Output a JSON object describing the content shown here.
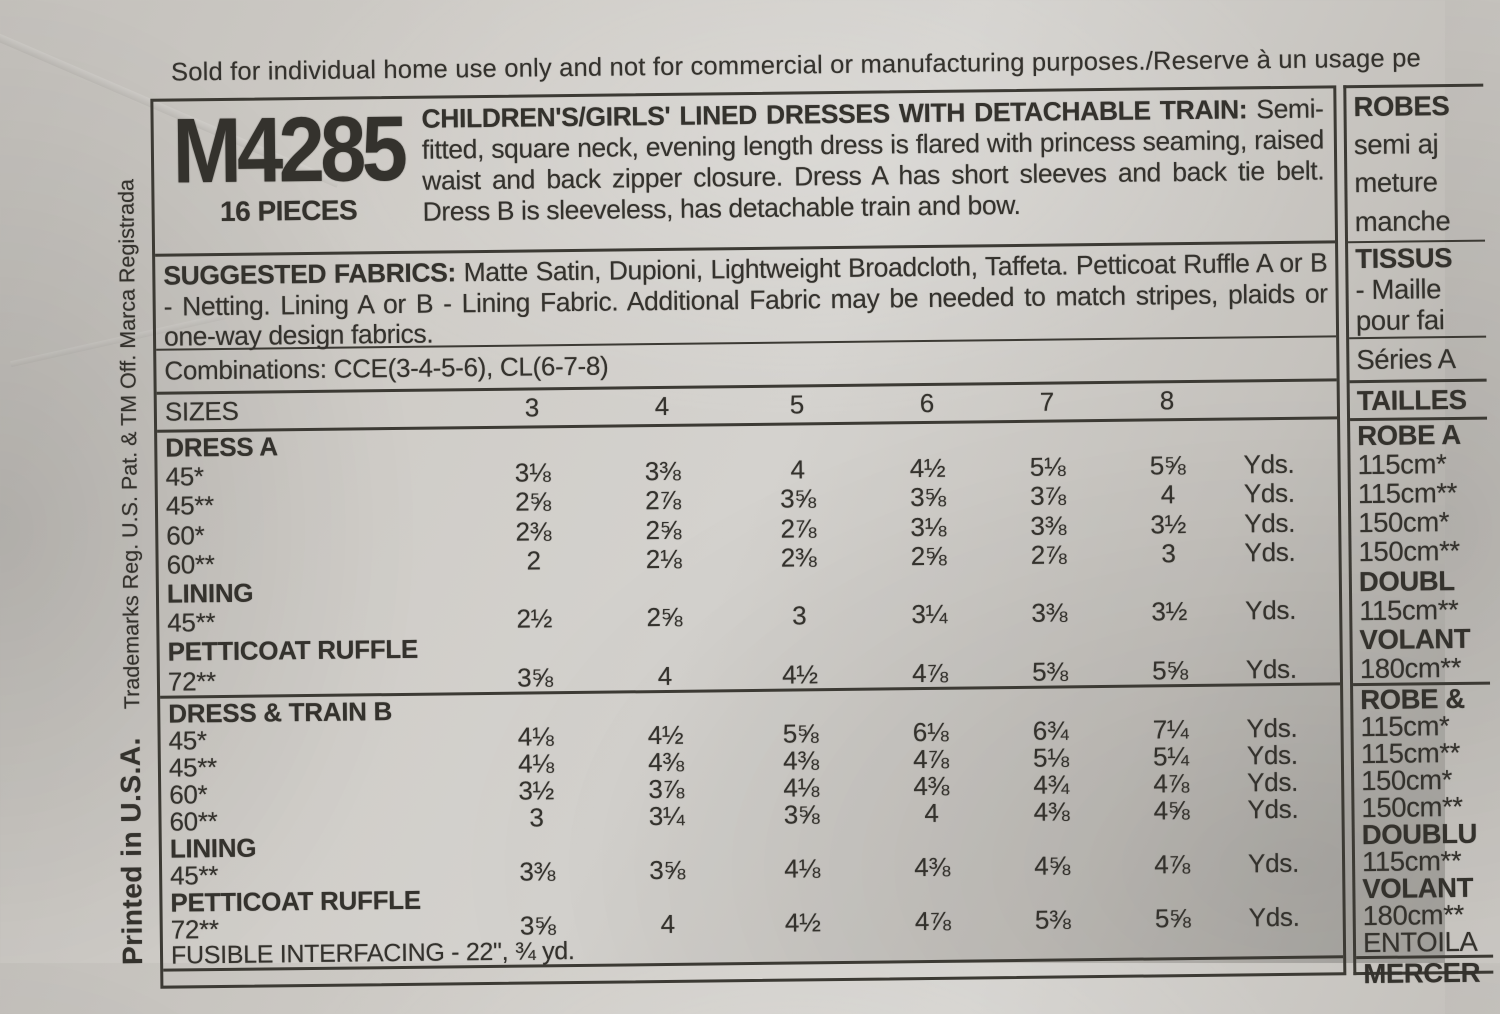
{
  "disclaimer": "Sold for individual home use only and not for commercial or manufacturing purposes./Reserve à un usage pe",
  "side_margin": {
    "printed_in": "Printed in U.S.A.",
    "trademarks": "Trademarks Reg. U.S. Pat. & TM Off. Marca Registrada"
  },
  "header": {
    "pattern_number": "M4285",
    "pieces": "16 PIECES",
    "title": "CHILDREN'S/GIRLS' LINED DRESSES WITH DETACHABLE TRAIN:",
    "description": " Semi-fitted, square neck, evening length dress is flared with princess seaming, raised waist and back zipper closure. Dress A has short sleeves and back tie belt. Dress B is sleeveless, has detachable train and bow."
  },
  "fabrics": {
    "label": "SUGGESTED FABRICS:",
    "text": " Matte Satin, Dupioni, Lightweight Broadcloth, Taffeta. Petticoat Ruffle A or B - Netting. Lining A or B - Lining Fabric. Additional Fabric may be needed to match stripes, plaids or one-way design fabrics."
  },
  "combinations": "Combinations: CCE(3-4-5-6), CL(6-7-8)",
  "yardage_table": {
    "sizes_label": "SIZES",
    "sizes": [
      "3",
      "4",
      "5",
      "6",
      "7",
      "8"
    ],
    "unit": "Yds.",
    "sections": [
      {
        "label": "DRESS A",
        "rows": [
          {
            "width": "45*",
            "values": [
              "3⅛",
              "3⅜",
              "4",
              "4½",
              "5⅛",
              "5⅝"
            ]
          },
          {
            "width": "45**",
            "values": [
              "2⅝",
              "2⅞",
              "3⅝",
              "3⅝",
              "3⅞",
              "4"
            ]
          },
          {
            "width": "60*",
            "values": [
              "2⅜",
              "2⅝",
              "2⅞",
              "3⅛",
              "3⅜",
              "3½"
            ]
          },
          {
            "width": "60**",
            "values": [
              "2",
              "2⅛",
              "2⅜",
              "2⅝",
              "2⅞",
              "3"
            ]
          }
        ]
      },
      {
        "label": "LINING",
        "rows": [
          {
            "width": "45**",
            "values": [
              "2½",
              "2⅝",
              "3",
              "3¼",
              "3⅜",
              "3½"
            ]
          }
        ]
      },
      {
        "label": "PETTICOAT RUFFLE",
        "rows": [
          {
            "width": "72**",
            "values": [
              "3⅝",
              "4",
              "4½",
              "4⅞",
              "5⅜",
              "5⅝"
            ]
          }
        ]
      },
      {
        "label": "DRESS & TRAIN B",
        "rows": [
          {
            "width": "45*",
            "values": [
              "4⅛",
              "4½",
              "5⅝",
              "6⅛",
              "6¾",
              "7¼"
            ]
          },
          {
            "width": "45**",
            "values": [
              "4⅛",
              "4⅜",
              "4⅜",
              "4⅞",
              "5⅛",
              "5¼"
            ]
          },
          {
            "width": "60*",
            "values": [
              "3½",
              "3⅞",
              "4⅛",
              "4⅜",
              "4¾",
              "4⅞"
            ]
          },
          {
            "width": "60**",
            "values": [
              "3",
              "3¼",
              "3⅝",
              "4",
              "4⅜",
              "4⅝"
            ]
          }
        ]
      },
      {
        "label": "LINING",
        "rows": [
          {
            "width": "45**",
            "values": [
              "3⅜",
              "3⅝",
              "4⅛",
              "4⅜",
              "4⅝",
              "4⅞"
            ]
          }
        ]
      },
      {
        "label": "PETTICOAT RUFFLE",
        "rows": [
          {
            "width": "72**",
            "values": [
              "3⅝",
              "4",
              "4½",
              "4⅞",
              "5⅜",
              "5⅝"
            ]
          }
        ]
      }
    ],
    "footer_note": "FUSIBLE INTERFACING - 22\", ¾ yd."
  },
  "french_column": {
    "blocks": [
      {
        "rows": [
          {
            "text": "ROBES",
            "bold": true
          },
          {
            "text": "semi aj"
          },
          {
            "text": "meture"
          },
          {
            "text": "manche"
          }
        ]
      },
      {
        "rows": [
          {
            "text": "TISSUS",
            "bold": true
          },
          {
            "text": "- Maille"
          },
          {
            "text": "pour fai"
          }
        ]
      },
      {
        "rows": [
          {
            "text": "Séries A"
          }
        ]
      },
      {
        "rows": [
          {
            "text": "TAILLES",
            "bold": true
          }
        ]
      },
      {
        "rows": [
          {
            "text": "ROBE A",
            "bold": true
          },
          {
            "text": "115cm*"
          },
          {
            "text": "115cm**"
          },
          {
            "text": "150cm*"
          },
          {
            "text": "150cm**"
          },
          {
            "text": "DOUBL",
            "bold": true
          },
          {
            "text": "115cm**"
          },
          {
            "text": "VOLANT",
            "bold": true
          },
          {
            "text": "180cm**"
          }
        ]
      },
      {
        "rows": [
          {
            "text": "ROBE &",
            "bold": true
          },
          {
            "text": "115cm*"
          },
          {
            "text": "115cm**"
          },
          {
            "text": "150cm*"
          },
          {
            "text": "150cm**"
          },
          {
            "text": "DOUBLU",
            "bold": true
          },
          {
            "text": "115cm**"
          },
          {
            "text": "VOLANT",
            "bold": true
          },
          {
            "text": "180cm**"
          },
          {
            "text": "ENTOILA"
          }
        ]
      },
      {
        "rows": [
          {
            "text": "MERCER",
            "bold": true
          }
        ]
      }
    ]
  }
}
